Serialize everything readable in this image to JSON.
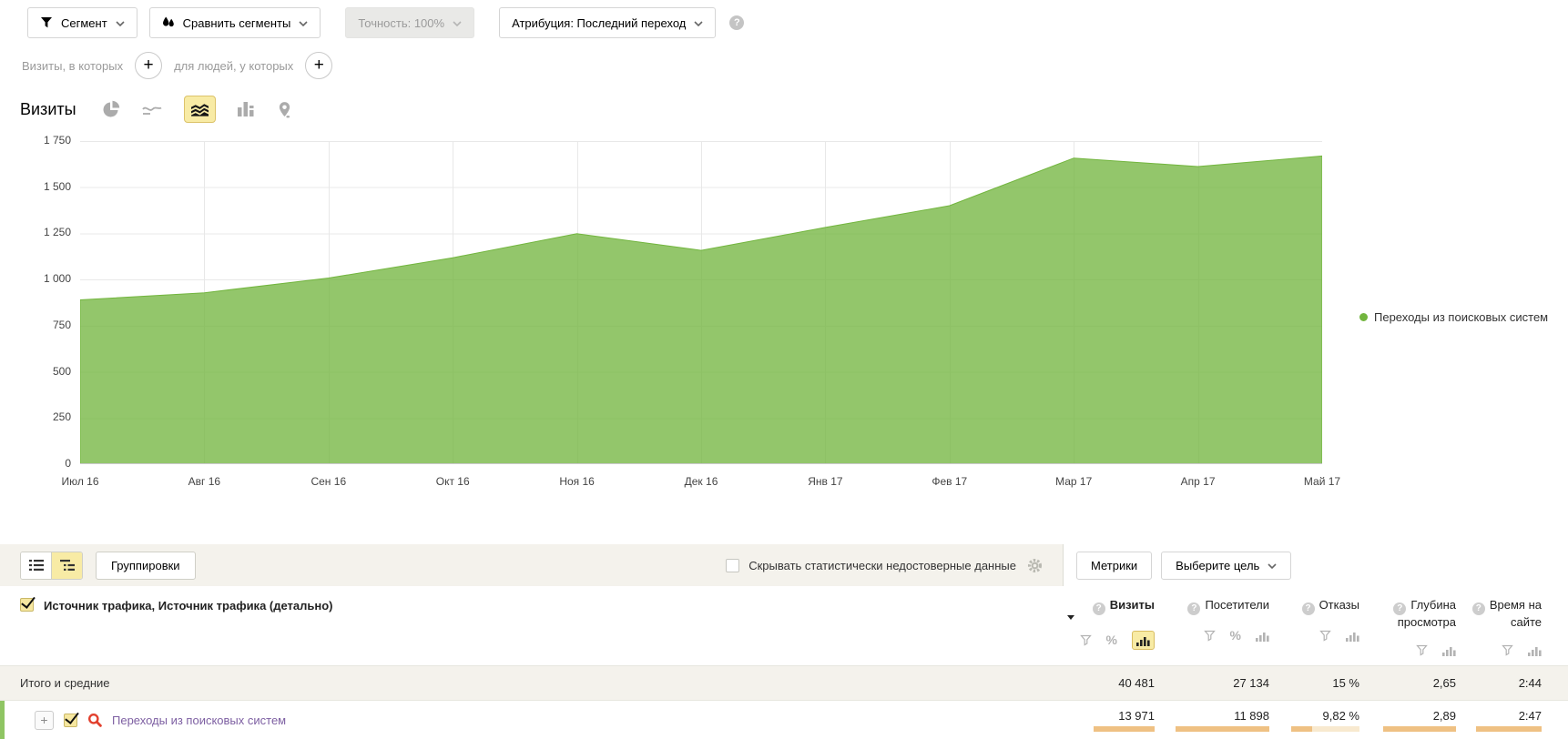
{
  "toolbar": {
    "segment_label": "Сегмент",
    "compare_label": "Сравнить сегменты",
    "accuracy_label": "Точность: 100%",
    "attribution_label": "Атрибуция: Последний переход",
    "help_symbol": "?"
  },
  "filters": {
    "visits_condition_label": "Визиты, в которых",
    "people_condition_label": "для людей, у которых",
    "add_symbol": "+"
  },
  "chart_section": {
    "title": "Визиты"
  },
  "chart_data": {
    "type": "area",
    "title": "Визиты",
    "categories": [
      "Июл 16",
      "Авг 16",
      "Сен 16",
      "Окт 16",
      "Ноя 16",
      "Дек 16",
      "Янв 17",
      "Фев 17",
      "Мар 17",
      "Апр 17",
      "Май 17"
    ],
    "series": [
      {
        "name": "Переходы из поисковых систем",
        "color": "#72b53e",
        "values": [
          890,
          928,
          1008,
          1118,
          1248,
          1158,
          1282,
          1400,
          1658,
          1612,
          1669
        ]
      }
    ],
    "ylim": [
      0,
      1750
    ],
    "yticks": [
      {
        "v": 1750,
        "label": "1 750"
      },
      {
        "v": 1500,
        "label": "1 500"
      },
      {
        "v": 1250,
        "label": "1 250"
      },
      {
        "v": 1000,
        "label": "1 000"
      },
      {
        "v": 750,
        "label": "750"
      },
      {
        "v": 500,
        "label": "500"
      },
      {
        "v": 250,
        "label": "250"
      },
      {
        "v": 0,
        "label": "0"
      }
    ],
    "grid": true,
    "legend_position": "right",
    "legend_label": "Переходы из поисковых систем"
  },
  "table": {
    "groupings_label": "Группировки",
    "hide_inaccurate_label": "Скрывать статистически недостоверные данные",
    "hide_inaccurate_checked": false,
    "metrics_button_label": "Метрики",
    "goal_button_label": "Выберите цель",
    "dimension_header": "Источник трафика, Источник трафика (детально)",
    "help_symbol": "?",
    "percent_symbol": "%",
    "columns": [
      {
        "label": "Визиты",
        "sorted": true,
        "tools": [
          "filter",
          "percent",
          "bars"
        ],
        "selected_tool": "bars"
      },
      {
        "label": "Посетители",
        "sorted": false,
        "tools": [
          "filter",
          "percent",
          "bars"
        ],
        "selected_tool": null
      },
      {
        "label": "Отказы",
        "sorted": false,
        "tools": [
          "filter",
          "bars"
        ],
        "selected_tool": null
      },
      {
        "label": "Глубина просмотра",
        "sorted": false,
        "tools": [
          "filter",
          "bars"
        ],
        "selected_tool": null
      },
      {
        "label": "Время на сайте",
        "sorted": false,
        "tools": [
          "filter",
          "bars"
        ],
        "selected_tool": null
      }
    ],
    "totals_label": "Итого и средние",
    "totals_values": [
      "40 481",
      "27 134",
      "15 %",
      "2,65",
      "2:44"
    ],
    "rows": [
      {
        "label": "Переходы из поисковых систем",
        "expand_symbol": "+",
        "checked": true,
        "values": [
          "13 971",
          "11 898",
          "9,82 %",
          "2,89",
          "2:47"
        ],
        "bars": [
          {
            "fill": 1
          },
          {
            "fill": 1
          },
          {
            "fill": 0.3
          },
          {
            "fill": 1
          },
          {
            "fill": 1
          }
        ]
      }
    ]
  },
  "colors": {
    "area_green": "#72b53e",
    "row_indicator_green": "#8fc563",
    "accent_yellow": "#f8eba5",
    "bar_orange": "#efc183",
    "bar_track": "#f8e9cf",
    "link_purple": "#7d5fa2",
    "search_red": "#e2402e",
    "strip_beige": "#f4f2ec"
  }
}
